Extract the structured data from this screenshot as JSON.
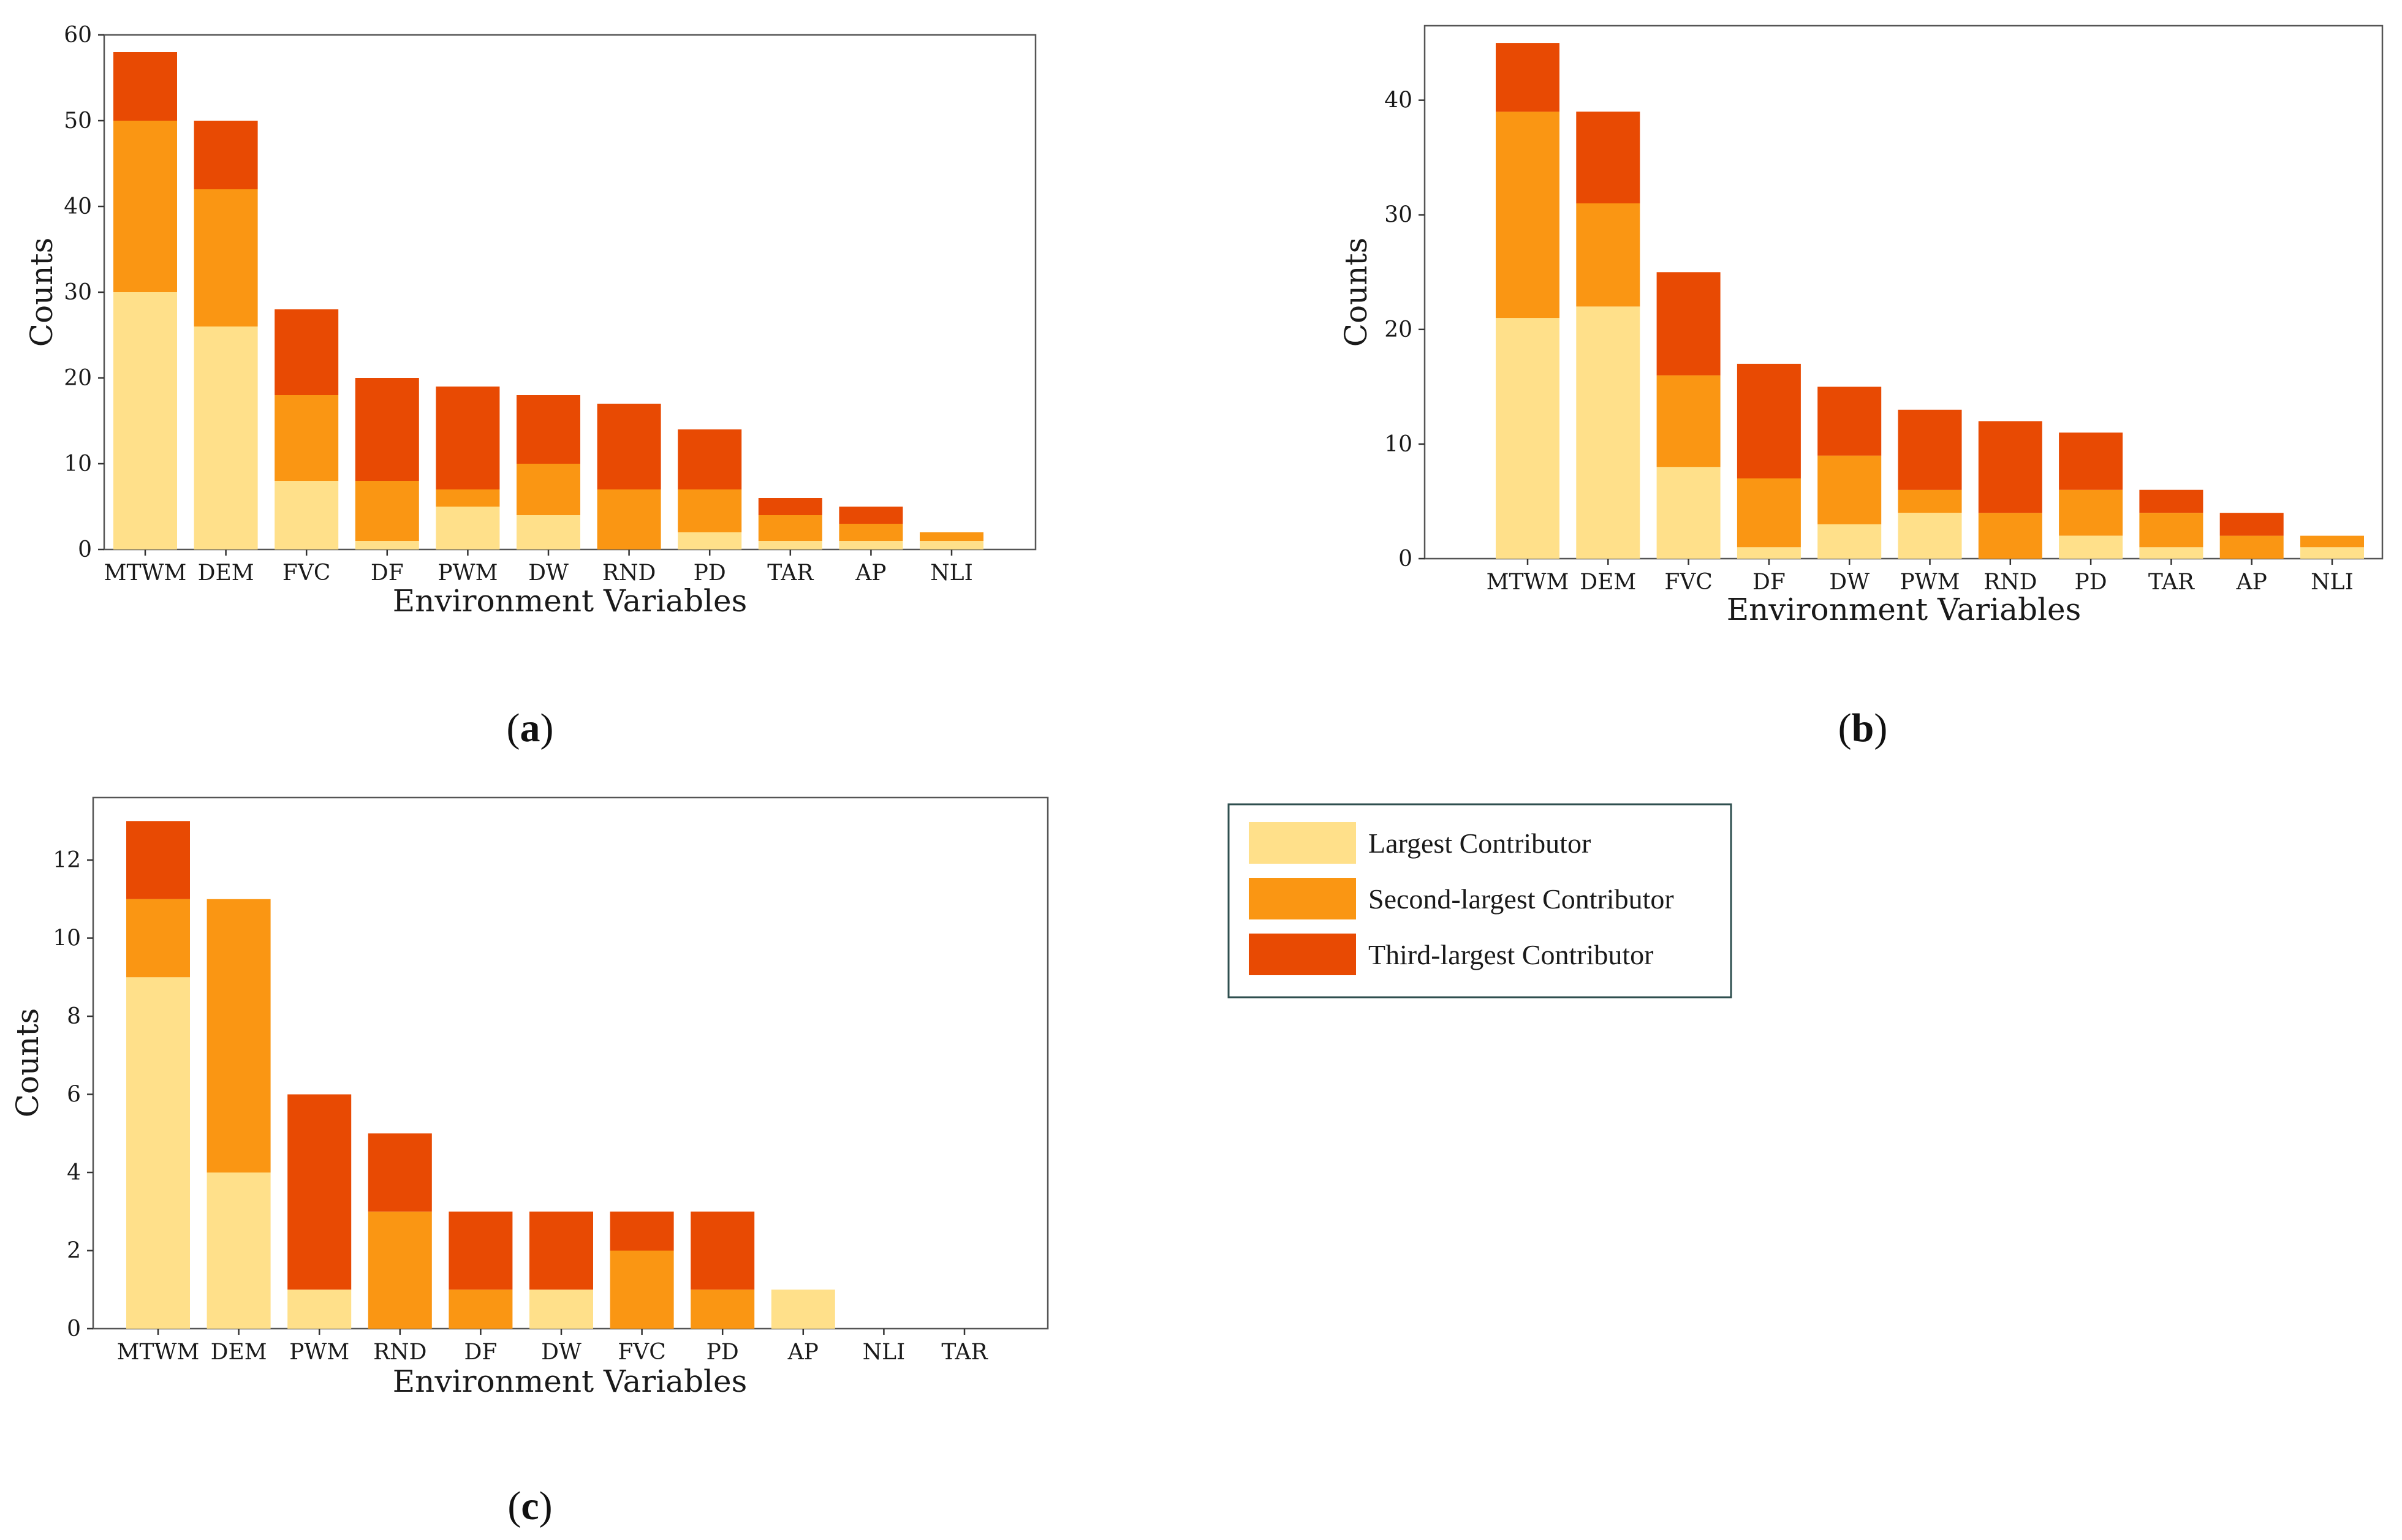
{
  "legend": {
    "entries": [
      {
        "label": "Largest Contributor",
        "color": "#FFE08A"
      },
      {
        "label": "Second-largest Contributor",
        "color": "#FA9613"
      },
      {
        "label": "Third-largest Contributor",
        "color": "#E84A03"
      }
    ]
  },
  "chart_data": [
    {
      "type": "bar",
      "stacked": true,
      "panel_label": "a",
      "xlabel": "Environment Variables",
      "ylabel": "Counts",
      "ylim": [
        0,
        60
      ],
      "yticks": [
        0,
        10,
        20,
        30,
        40,
        50,
        60
      ],
      "categories": [
        "MTWM",
        "DEM",
        "FVC",
        "DF",
        "PWM",
        "DW",
        "RND",
        "PD",
        "TAR",
        "AP",
        "NLI"
      ],
      "series": [
        {
          "name": "Largest Contributor",
          "color": "#FFE08A",
          "values": [
            30,
            26,
            8,
            1,
            5,
            4,
            0,
            2,
            1,
            1,
            1
          ]
        },
        {
          "name": "Second-largest Contributor",
          "color": "#FA9613",
          "values": [
            20,
            16,
            10,
            7,
            2,
            6,
            7,
            5,
            3,
            2,
            1
          ]
        },
        {
          "name": "Third-largest Contributor",
          "color": "#E84A03",
          "values": [
            8,
            8,
            10,
            12,
            12,
            8,
            10,
            7,
            2,
            2,
            0
          ]
        }
      ]
    },
    {
      "type": "bar",
      "stacked": true,
      "panel_label": "b",
      "xlabel": "Environment Variables",
      "ylabel": "Counts",
      "ylim": [
        0,
        46.5
      ],
      "yticks": [
        0,
        10,
        20,
        30,
        40
      ],
      "categories": [
        "MTWM",
        "DEM",
        "FVC",
        "DF",
        "DW",
        "PWM",
        "RND",
        "PD",
        "TAR",
        "AP",
        "NLI"
      ],
      "series": [
        {
          "name": "Largest Contributor",
          "color": "#FFE08A",
          "values": [
            21,
            22,
            8,
            1,
            3,
            4,
            0,
            2,
            1,
            0,
            1
          ]
        },
        {
          "name": "Second-largest Contributor",
          "color": "#FA9613",
          "values": [
            18,
            9,
            8,
            6,
            6,
            2,
            4,
            4,
            3,
            2,
            1
          ]
        },
        {
          "name": "Third-largest Contributor",
          "color": "#E84A03",
          "values": [
            6,
            8,
            9,
            10,
            6,
            7,
            8,
            5,
            2,
            2,
            0
          ]
        }
      ]
    },
    {
      "type": "bar",
      "stacked": true,
      "panel_label": "c",
      "xlabel": "Environment Variables",
      "ylabel": "Counts",
      "ylim": [
        0,
        13.6
      ],
      "yticks": [
        0,
        2,
        4,
        6,
        8,
        10,
        12
      ],
      "categories": [
        "MTWM",
        "DEM",
        "PWM",
        "RND",
        "DF",
        "DW",
        "FVC",
        "PD",
        "AP",
        "NLI",
        "TAR"
      ],
      "series": [
        {
          "name": "Largest Contributor",
          "color": "#FFE08A",
          "values": [
            9,
            4,
            1,
            0,
            0,
            1,
            0,
            0,
            1,
            0,
            0
          ]
        },
        {
          "name": "Second-largest Contributor",
          "color": "#FA9613",
          "values": [
            2,
            7,
            0,
            3,
            1,
            0,
            2,
            1,
            0,
            0,
            0
          ]
        },
        {
          "name": "Third-largest Contributor",
          "color": "#E84A03",
          "values": [
            2,
            0,
            5,
            2,
            2,
            2,
            1,
            2,
            0,
            0,
            0
          ]
        }
      ]
    }
  ]
}
